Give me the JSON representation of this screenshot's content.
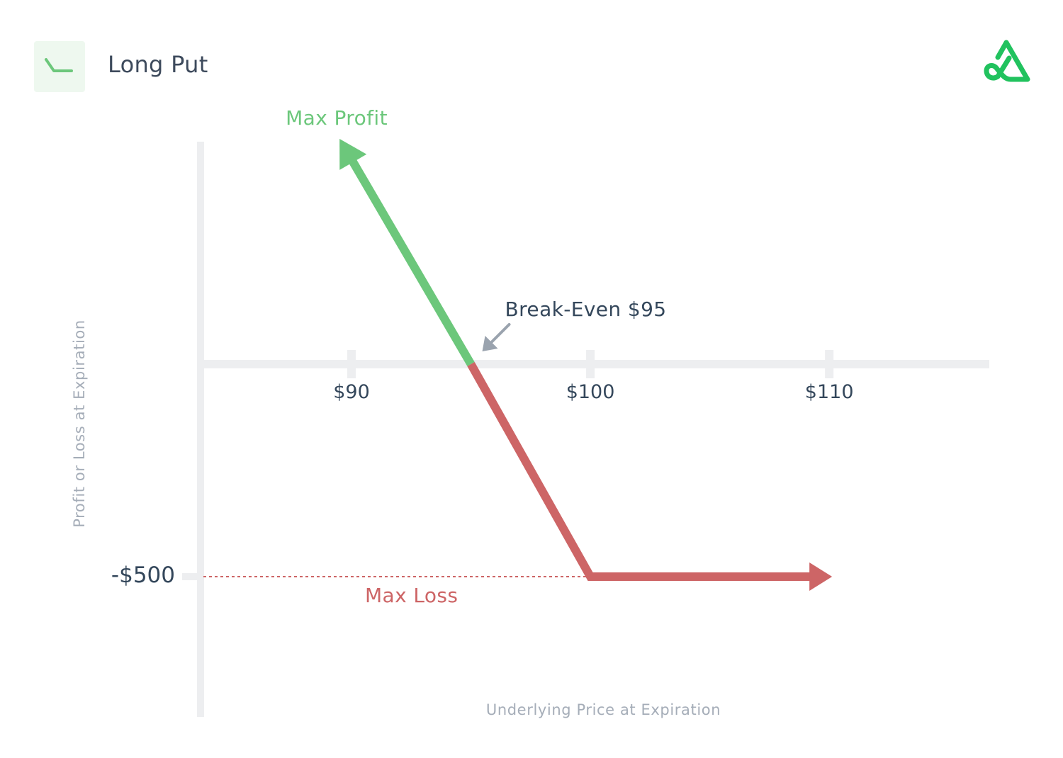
{
  "header": {
    "title": "Long Put",
    "badge_icon": "payoff-line-icon",
    "logo_icon": "brand-logo-icon"
  },
  "colors": {
    "profit": "#6cc77b",
    "loss": "#cd6566",
    "axis": "#edeef0",
    "text": "#34475b",
    "muted": "#a5adb8",
    "arrow": "#9aa3ae"
  },
  "chart_data": {
    "type": "line",
    "xlabel": "Underlying Price at Expiration",
    "ylabel": "Profit or Loss at Expiration",
    "x_ticks": [
      {
        "value": 90,
        "label": "$90"
      },
      {
        "value": 100,
        "label": "$100"
      },
      {
        "value": 110,
        "label": "$110"
      }
    ],
    "y_ticks": [
      {
        "value": -500,
        "label": "-$500"
      }
    ],
    "xlim": [
      83.8,
      116.7
    ],
    "ylim": [
      -830,
      530
    ],
    "strike": 100,
    "break_even": 95,
    "max_loss": -500,
    "series": [
      {
        "segment": "profit",
        "points": [
          [
            89.5,
            530
          ],
          [
            95,
            0
          ]
        ]
      },
      {
        "segment": "loss",
        "points": [
          [
            95,
            0
          ],
          [
            100,
            -500
          ],
          [
            110,
            -500
          ]
        ]
      }
    ],
    "annotations": {
      "max_profit": "Max Profit",
      "break_even": "Break-Even $95",
      "max_loss": "Max Loss"
    }
  }
}
